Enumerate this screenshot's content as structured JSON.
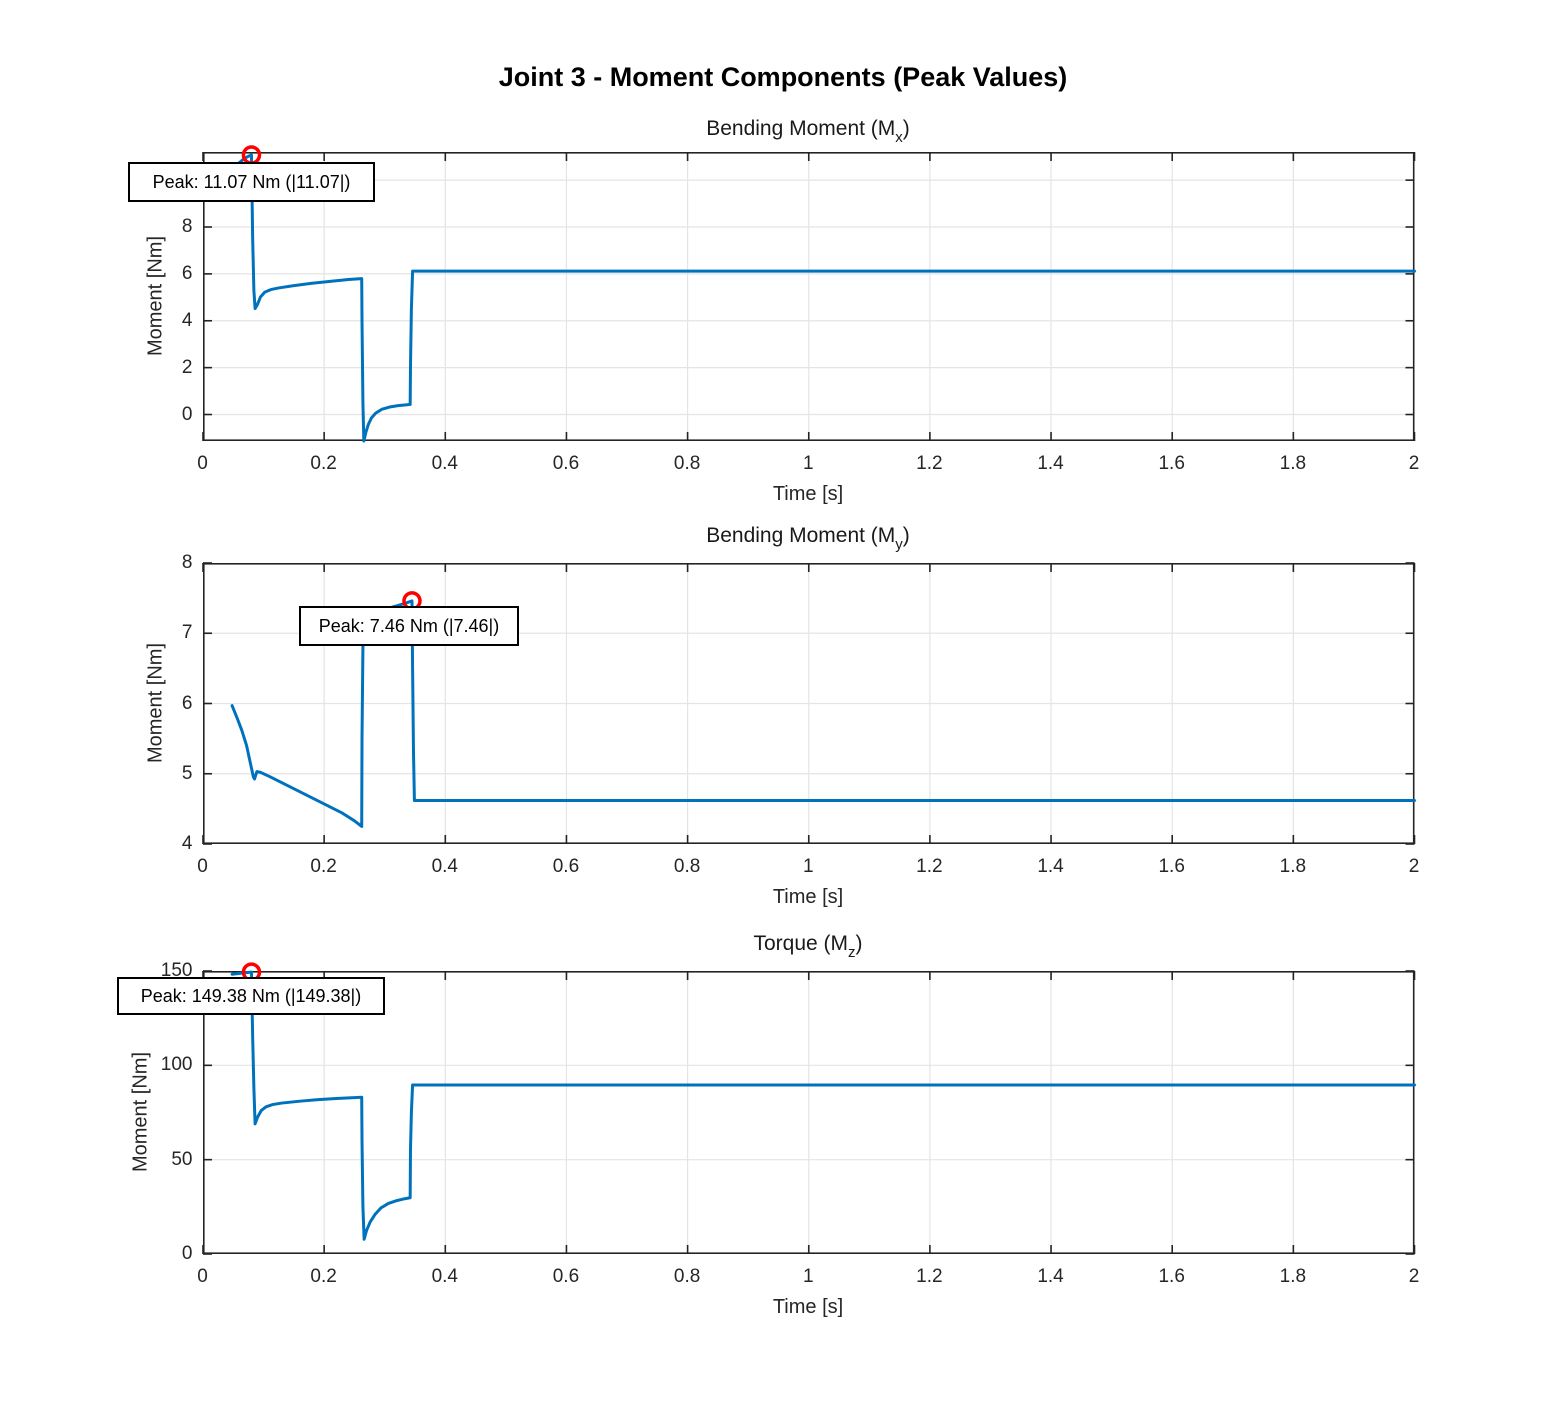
{
  "figure": {
    "title": "Joint 3 - Moment Components (Peak Values)"
  },
  "style": {
    "line_color": "#0072BD",
    "marker_color": "#FF0000",
    "grid_color": "#E4E4E4",
    "axis_color": "#242424",
    "tick_label_color": "#262626",
    "background": "#FFFFFF"
  },
  "chart_data": [
    {
      "type": "line",
      "title_pre": "Bending Moment (M",
      "title_sub": "x",
      "title_post": ")",
      "xlabel": "Time [s]",
      "ylabel": "Moment [Nm]",
      "xlim": [
        0,
        2
      ],
      "ylim": [
        -1.13,
        11.2
      ],
      "grid": true,
      "xticks": [
        0,
        0.2,
        0.4,
        0.6,
        0.8,
        1,
        1.2,
        1.4,
        1.6,
        1.8,
        2
      ],
      "xtick_labels": [
        "0",
        "0.2",
        "0.4",
        "0.6",
        "0.8",
        "1",
        "1.2",
        "1.4",
        "1.6",
        "1.8",
        "2"
      ],
      "yticks": [
        0,
        2,
        4,
        6,
        8,
        10
      ],
      "ytick_labels": [
        "0",
        "2",
        "4",
        "6",
        "8",
        "10"
      ],
      "peak": {
        "x": 0.08,
        "y": 11.07,
        "label": "Peak: 11.07 Nm (|11.07|)"
      },
      "x": [
        0.048,
        0.058,
        0.068,
        0.076,
        0.08,
        0.0805,
        0.082,
        0.084,
        0.086,
        0.09,
        0.095,
        0.102,
        0.112,
        0.125,
        0.15,
        0.18,
        0.21,
        0.24,
        0.262,
        0.2625,
        0.264,
        0.2655,
        0.269,
        0.273,
        0.278,
        0.285,
        0.295,
        0.308,
        0.322,
        0.335,
        0.342,
        0.3425,
        0.344,
        0.346,
        0.36,
        0.5,
        1.0,
        1.5,
        2.0
      ],
      "y": [
        10.45,
        10.7,
        10.92,
        11.03,
        11.07,
        10.2,
        7.5,
        5.3,
        4.52,
        4.7,
        5.02,
        5.22,
        5.33,
        5.4,
        5.5,
        5.6,
        5.68,
        5.76,
        5.8,
        4.0,
        0.5,
        -1.13,
        -0.75,
        -0.42,
        -0.15,
        0.06,
        0.22,
        0.32,
        0.38,
        0.41,
        0.43,
        2.0,
        4.5,
        6.12,
        6.12,
        6.12,
        6.12,
        6.12,
        6.12
      ]
    },
    {
      "type": "line",
      "title_pre": "Bending Moment (M",
      "title_sub": "y",
      "title_post": ")",
      "xlabel": "Time [s]",
      "ylabel": "Moment [Nm]",
      "xlim": [
        0,
        2
      ],
      "ylim": [
        4,
        8
      ],
      "grid": true,
      "xticks": [
        0,
        0.2,
        0.4,
        0.6,
        0.8,
        1,
        1.2,
        1.4,
        1.6,
        1.8,
        2
      ],
      "xtick_labels": [
        "0",
        "0.2",
        "0.4",
        "0.6",
        "0.8",
        "1",
        "1.2",
        "1.4",
        "1.6",
        "1.8",
        "2"
      ],
      "yticks": [
        4,
        5,
        6,
        7,
        8
      ],
      "ytick_labels": [
        "4",
        "5",
        "6",
        "7",
        "8"
      ],
      "peak": {
        "x": 0.345,
        "y": 7.46,
        "label": "Peak: 7.46 Nm (|7.46|)"
      },
      "x": [
        0.048,
        0.056,
        0.064,
        0.072,
        0.079,
        0.083,
        0.085,
        0.087,
        0.089,
        0.095,
        0.11,
        0.14,
        0.17,
        0.2,
        0.23,
        0.25,
        0.262,
        0.2625,
        0.264,
        0.2655,
        0.28,
        0.3,
        0.32,
        0.335,
        0.345,
        0.346,
        0.3475,
        0.349,
        0.36,
        0.5,
        1.0,
        1.5,
        2.0
      ],
      "y": [
        5.97,
        5.8,
        5.62,
        5.4,
        5.12,
        4.96,
        4.925,
        4.98,
        5.03,
        5.02,
        4.96,
        4.83,
        4.7,
        4.57,
        4.44,
        4.33,
        4.25,
        5.5,
        6.8,
        7.26,
        7.3,
        7.34,
        7.39,
        7.43,
        7.46,
        6.5,
        5.3,
        4.62,
        4.62,
        4.62,
        4.62,
        4.62,
        4.62
      ]
    },
    {
      "type": "line",
      "title_pre": "Torque (M",
      "title_sub": "z",
      "title_post": ")",
      "xlabel": "Time [s]",
      "ylabel": "Moment [Nm]",
      "xlim": [
        0,
        2
      ],
      "ylim": [
        0,
        150
      ],
      "grid": true,
      "xticks": [
        0,
        0.2,
        0.4,
        0.6,
        0.8,
        1,
        1.2,
        1.4,
        1.6,
        1.8,
        2
      ],
      "xtick_labels": [
        "0",
        "0.2",
        "0.4",
        "0.6",
        "0.8",
        "1",
        "1.2",
        "1.4",
        "1.6",
        "1.8",
        "2"
      ],
      "yticks": [
        0,
        50,
        100,
        150
      ],
      "ytick_labels": [
        "0",
        "50",
        "100",
        "150"
      ],
      "peak": {
        "x": 0.08,
        "y": 149.38,
        "label": "Peak: 149.38 Nm (|149.38|)"
      },
      "x": [
        0.048,
        0.058,
        0.068,
        0.076,
        0.08,
        0.0805,
        0.082,
        0.084,
        0.086,
        0.09,
        0.096,
        0.104,
        0.115,
        0.13,
        0.16,
        0.19,
        0.22,
        0.25,
        0.262,
        0.2625,
        0.264,
        0.266,
        0.27,
        0.276,
        0.284,
        0.294,
        0.306,
        0.32,
        0.333,
        0.342,
        0.3425,
        0.344,
        0.346,
        0.36,
        0.5,
        1.0,
        1.5,
        2.0
      ],
      "y": [
        148.3,
        148.7,
        149.1,
        149.3,
        149.38,
        140,
        115,
        88,
        69,
        72.5,
        76,
        78,
        79.2,
        80,
        81,
        81.8,
        82.4,
        82.9,
        83.1,
        60,
        25,
        7.8,
        12.5,
        17,
        21,
        24.5,
        26.8,
        28.3,
        29.3,
        29.8,
        55,
        75,
        89.6,
        89.6,
        89.6,
        89.6,
        89.6,
        89.6
      ]
    }
  ]
}
